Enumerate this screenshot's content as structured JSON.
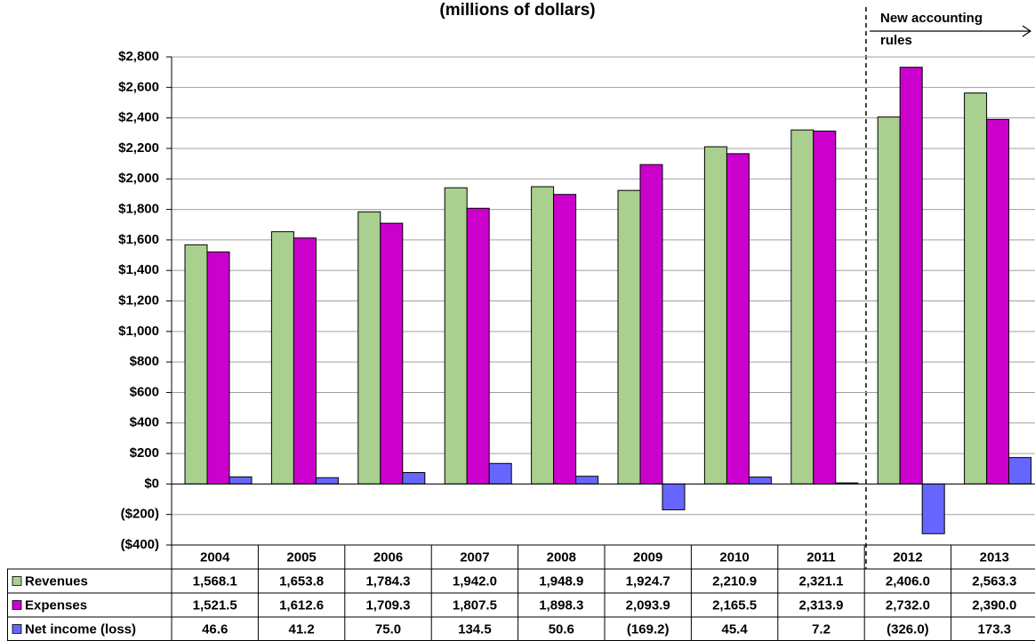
{
  "chart_data": {
    "type": "bar",
    "title": "(millions of dollars)",
    "annotation": "New accounting rules",
    "categories": [
      "2004",
      "2005",
      "2006",
      "2007",
      "2008",
      "2009",
      "2010",
      "2011",
      "2012",
      "2013"
    ],
    "series": [
      {
        "name": "Revenues",
        "color": "#a9d08e",
        "values": [
          1568.1,
          1653.8,
          1784.3,
          1942.0,
          1948.9,
          1924.7,
          2210.9,
          2321.1,
          2406.0,
          2563.3
        ],
        "value_labels": [
          "1,568.1",
          "1,653.8",
          "1,784.3",
          "1,942.0",
          "1,948.9",
          "1,924.7",
          "2,210.9",
          "2,321.1",
          "2,406.0",
          "2,563.3"
        ]
      },
      {
        "name": "Expenses",
        "color": "#cc00cc",
        "values": [
          1521.5,
          1612.6,
          1709.3,
          1807.5,
          1898.3,
          2093.9,
          2165.5,
          2313.9,
          2732.0,
          2390.0
        ],
        "value_labels": [
          "1,521.5",
          "1,612.6",
          "1,709.3",
          "1,807.5",
          "1,898.3",
          "2,093.9",
          "2,165.5",
          "2,313.9",
          "2,732.0",
          "2,390.0"
        ]
      },
      {
        "name": "Net income (loss)",
        "color": "#6666ff",
        "values": [
          46.6,
          41.2,
          75.0,
          134.5,
          50.6,
          -169.2,
          45.4,
          7.2,
          -326.0,
          173.3
        ],
        "value_labels": [
          "46.6",
          "41.2",
          "75.0",
          "134.5",
          "50.6",
          "(169.2)",
          "45.4",
          "7.2",
          "(326.0)",
          "173.3"
        ]
      }
    ],
    "ylim": [
      -400,
      2800
    ],
    "yticks": [
      {
        "value": -400,
        "label": "($400)"
      },
      {
        "value": -200,
        "label": "($200)"
      },
      {
        "value": 0,
        "label": "$0"
      },
      {
        "value": 200,
        "label": "$200"
      },
      {
        "value": 400,
        "label": "$400"
      },
      {
        "value": 600,
        "label": "$600"
      },
      {
        "value": 800,
        "label": "$800"
      },
      {
        "value": 1000,
        "label": "$1,000"
      },
      {
        "value": 1200,
        "label": "$1,200"
      },
      {
        "value": 1400,
        "label": "$1,400"
      },
      {
        "value": 1600,
        "label": "$1,600"
      },
      {
        "value": 1800,
        "label": "$1,800"
      },
      {
        "value": 2000,
        "label": "$2,000"
      },
      {
        "value": 2200,
        "label": "$2,200"
      },
      {
        "value": 2400,
        "label": "$2,400"
      },
      {
        "value": 2600,
        "label": "$2,600"
      },
      {
        "value": 2800,
        "label": "$2,800"
      }
    ],
    "grid": true
  }
}
